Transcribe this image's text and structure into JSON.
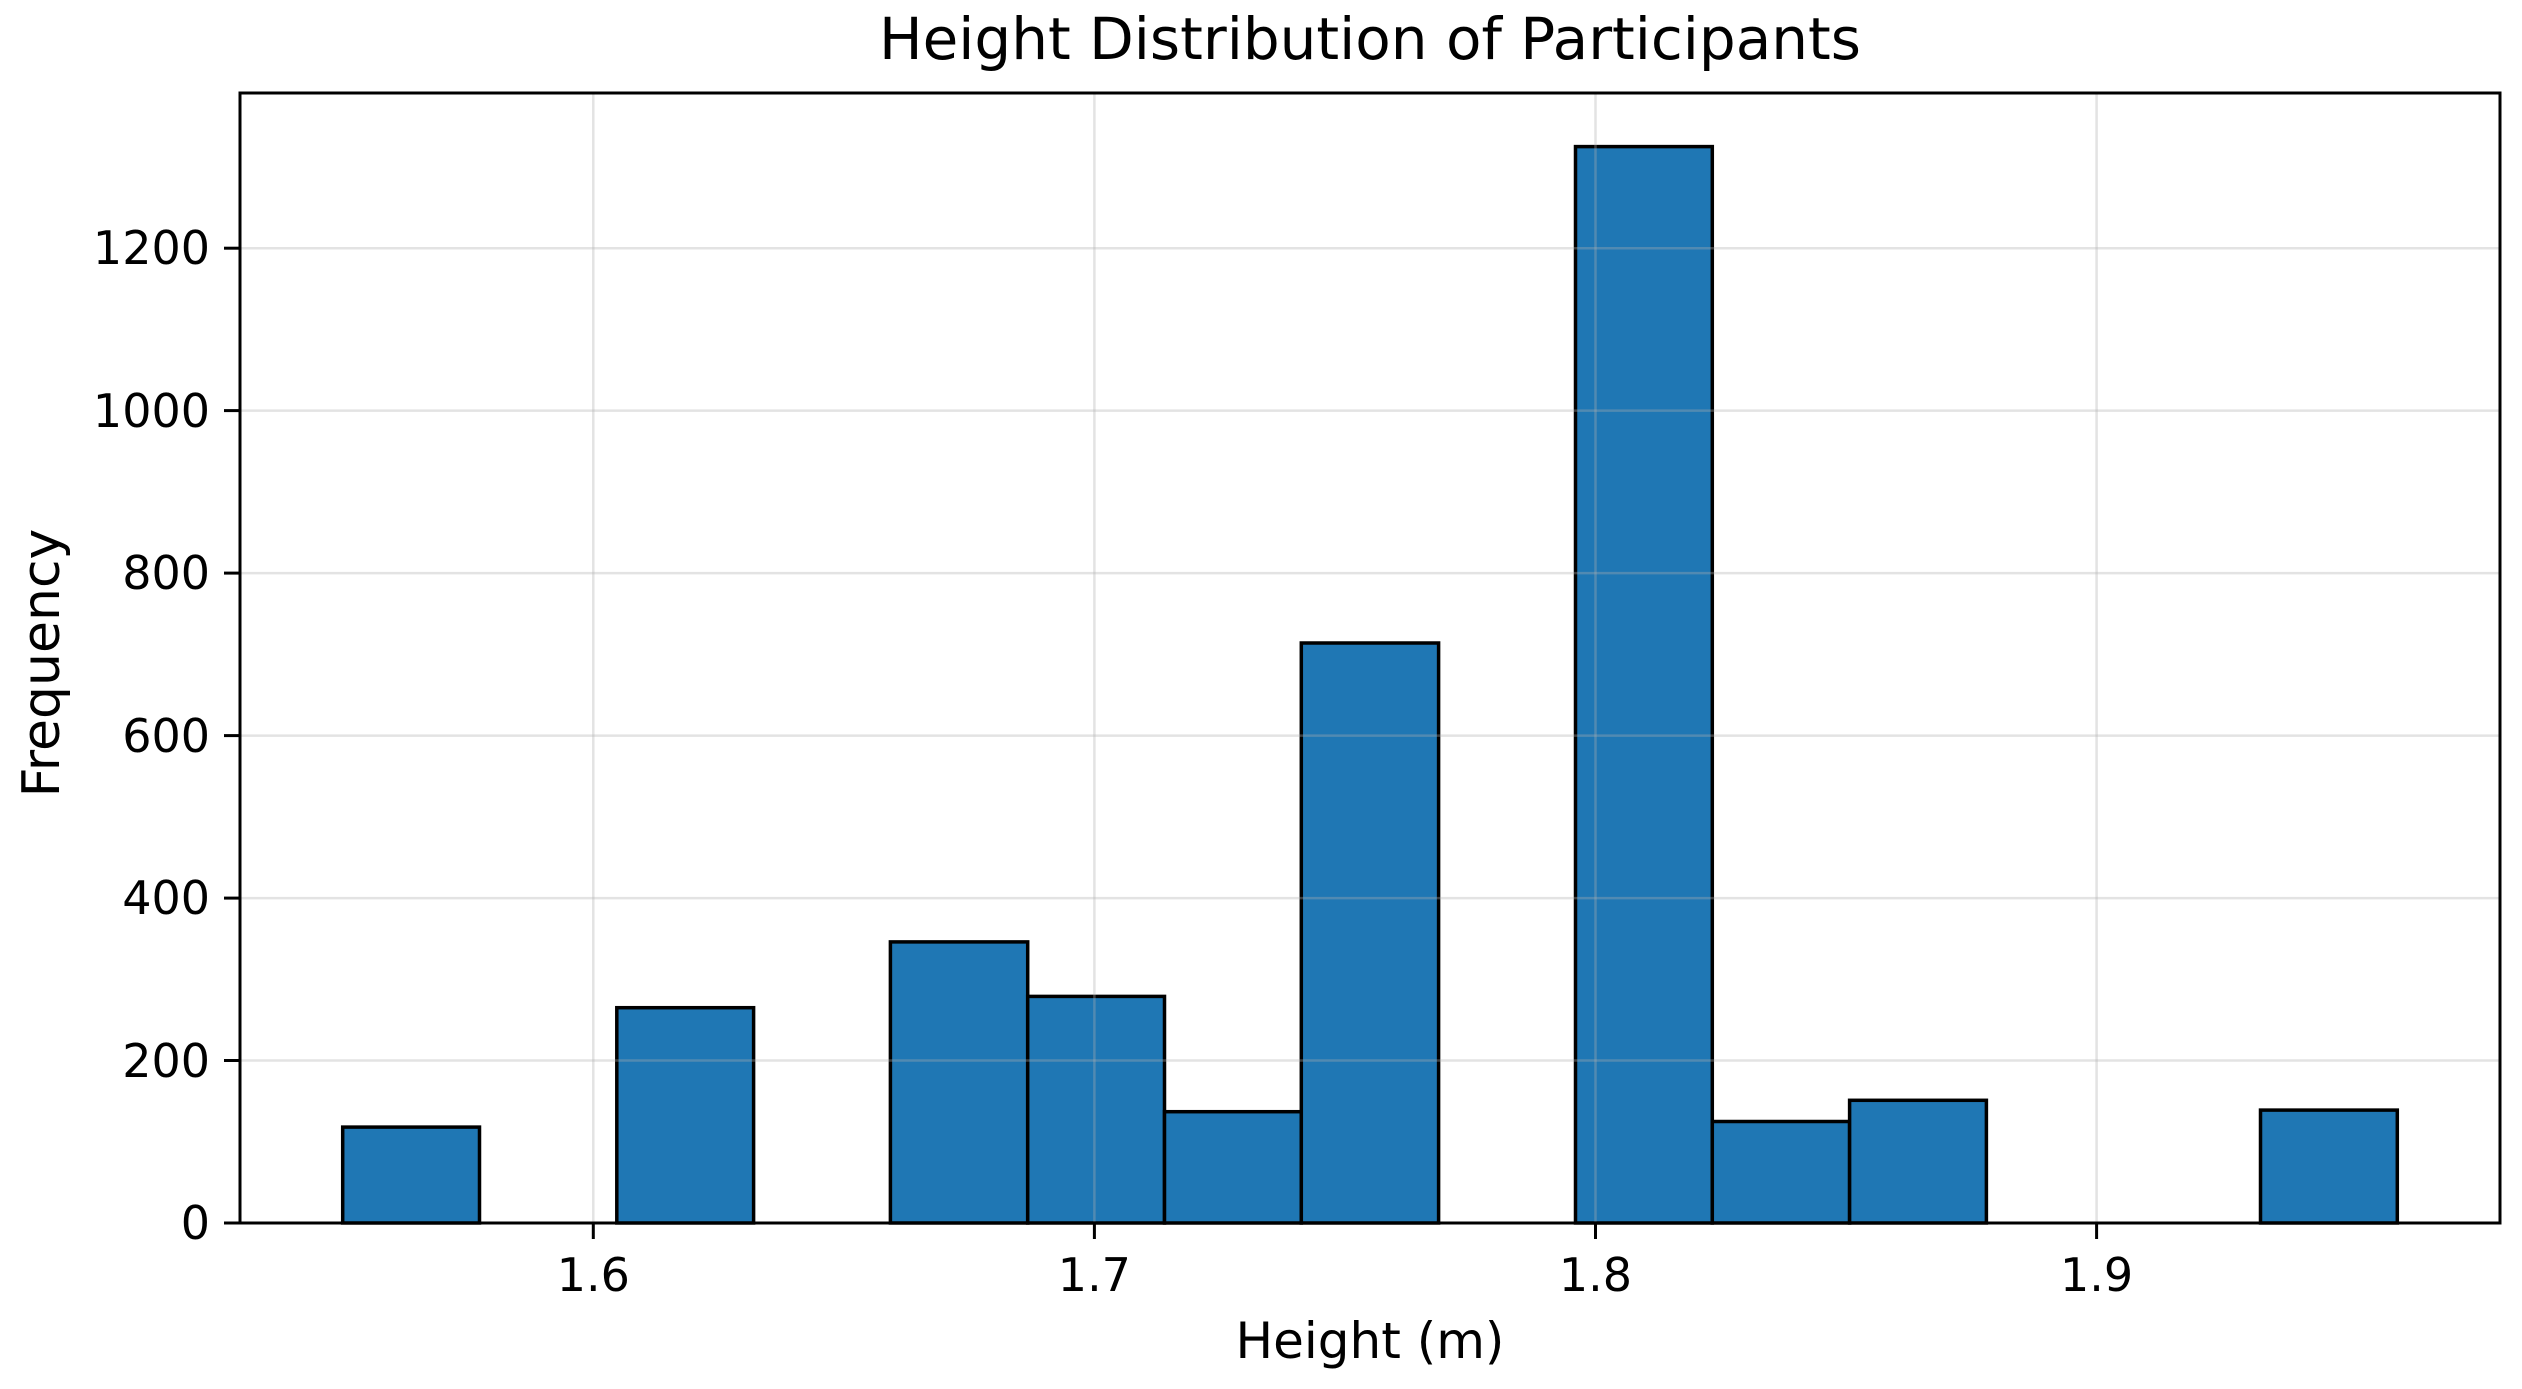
{
  "chart_data": {
    "type": "bar",
    "subtype": "histogram",
    "title": "Height Distribution of Participants",
    "xlabel": "Height (m)",
    "ylabel": "Frequency",
    "bin_edges": [
      1.55,
      1.5773,
      1.6047,
      1.632,
      1.6593,
      1.6867,
      1.714,
      1.7413,
      1.7687,
      1.796,
      1.8233,
      1.8507,
      1.878,
      1.9053,
      1.9327,
      1.96
    ],
    "values": [
      118,
      0,
      265,
      0,
      346,
      279,
      137,
      714,
      0,
      1325,
      125,
      151,
      0,
      0,
      139
    ],
    "xticks": [
      1.6,
      1.7,
      1.8,
      1.9
    ],
    "xtick_labels": [
      "1.6",
      "1.7",
      "1.8",
      "1.9"
    ],
    "yticks": [
      0,
      200,
      400,
      600,
      800,
      1000,
      1200
    ],
    "ytick_labels": [
      "0",
      "200",
      "400",
      "600",
      "800",
      "1000",
      "1200"
    ],
    "xlim": [
      1.5295,
      1.9805
    ],
    "ylim": [
      0,
      1391
    ],
    "grid": true,
    "legend_position": "none",
    "bar_color": "#1f77b4",
    "bar_edge_color": "#000000",
    "grid_color": "#b0b0b0",
    "grid_alpha": 0.35,
    "spine_color": "#000000",
    "text_color": "#000000",
    "background_color": "#ffffff"
  }
}
